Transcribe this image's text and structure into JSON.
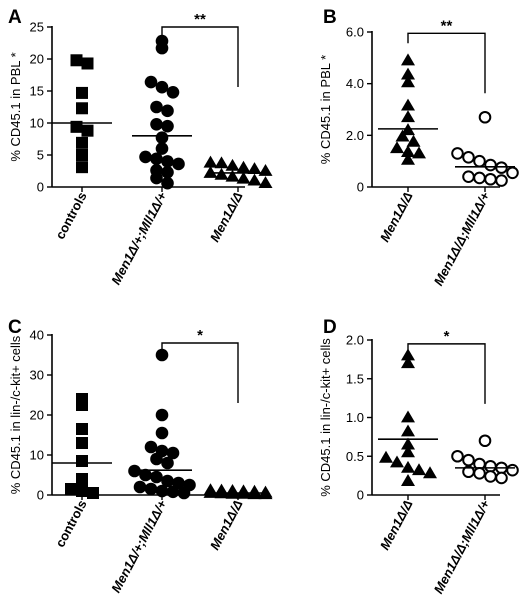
{
  "chart_data": [
    {
      "panel": "A",
      "type": "scatter",
      "ylabel": "% CD45.1 in PBL *",
      "ylim": [
        0,
        25
      ],
      "yticks": [
        0,
        5,
        10,
        15,
        20,
        25
      ],
      "categories": [
        "controls",
        "Men1Δ/+;Mll1Δ/+",
        "Men1Δ/Δ"
      ],
      "italic_categories": [
        false,
        true,
        true
      ],
      "series": [
        {
          "category": "controls",
          "marker": "square-filled",
          "mean": 10.0,
          "values": [
            19.8,
            19.3,
            14.7,
            12.3,
            9.4,
            8.8,
            6.9,
            5.0,
            3.1
          ]
        },
        {
          "category": "Men1Δ/+;Mll1Δ/+",
          "marker": "circle-filled",
          "mean": 8.0,
          "values": [
            22.8,
            21.7,
            16.4,
            15.6,
            14.8,
            12.5,
            11.9,
            9.8,
            9.5,
            7.7,
            6.0,
            4.7,
            4.4,
            4.0,
            3.6,
            2.6,
            2.3,
            1.4,
            0.6
          ]
        },
        {
          "category": "Men1Δ/Δ",
          "marker": "triangle-filled",
          "mean": 2.2,
          "values": [
            3.8,
            3.7,
            3.3,
            3.0,
            2.8,
            2.5,
            2.2,
            1.9,
            1.6,
            1.3,
            1.0,
            0.6
          ]
        }
      ],
      "significance": {
        "label": "**",
        "from": 1,
        "to": 2,
        "y": 25
      }
    },
    {
      "panel": "B",
      "type": "scatter",
      "ylabel": "% CD45.1 in PBL *",
      "ylim": [
        0,
        6
      ],
      "yticks": [
        0,
        2,
        4,
        6
      ],
      "ytick_labels": [
        "0",
        "2.0",
        "4.0",
        "6.0"
      ],
      "categories": [
        "Men1Δ/Δ",
        "Men1Δ/Δ;Mll1Δ/+"
      ],
      "italic_categories": [
        true,
        true
      ],
      "series": [
        {
          "category": "Men1Δ/Δ",
          "marker": "triangle-filled",
          "mean": 2.25,
          "values": [
            4.9,
            4.35,
            4.05,
            3.15,
            2.7,
            2.2,
            1.95,
            1.75,
            1.5,
            1.35,
            1.3,
            1.05
          ]
        },
        {
          "category": "Men1Δ/Δ;Mll1Δ/+",
          "marker": "circle-open",
          "mean": 0.78,
          "values": [
            2.7,
            1.3,
            1.15,
            1.0,
            0.85,
            0.75,
            0.55,
            0.4,
            0.35,
            0.3,
            0.25
          ]
        }
      ],
      "significance": {
        "label": "**",
        "from": 0,
        "to": 1,
        "y": 5.95
      }
    },
    {
      "panel": "C",
      "type": "scatter",
      "ylabel": "% CD45.1 in lin-/c-kit+ cells",
      "ylim": [
        0,
        40
      ],
      "yticks": [
        0,
        10,
        20,
        30,
        40
      ],
      "categories": [
        "controls",
        "Men1Δ/+;Mll1Δ/+",
        "Men1Δ/Δ"
      ],
      "italic_categories": [
        false,
        true,
        true
      ],
      "series": [
        {
          "category": "controls",
          "marker": "square-filled",
          "mean": 8.0,
          "values": [
            24.0,
            22.5,
            16.5,
            13.0,
            8.5,
            4.0,
            1.5,
            1.0,
            0.5
          ]
        },
        {
          "category": "Men1Δ/+;Mll1Δ/+",
          "marker": "circle-filled",
          "mean": 6.2,
          "values": [
            35.0,
            20.0,
            15.5,
            12.0,
            11.0,
            10.5,
            9.0,
            8.0,
            6.0,
            5.0,
            4.5,
            3.5,
            3.0,
            2.5,
            2.0,
            1.5,
            1.0,
            0.8,
            0.5
          ]
        },
        {
          "category": "Men1Δ/Δ",
          "marker": "triangle-filled",
          "mean": 0.5,
          "values": [
            1.2,
            1.1,
            1.0,
            0.9,
            0.8,
            0.6,
            0.5,
            0.4,
            0.3,
            0.3,
            0.2,
            0.2
          ]
        }
      ],
      "significance": {
        "label": "*",
        "from": 1,
        "to": 2,
        "y": 38
      }
    },
    {
      "panel": "D",
      "type": "scatter",
      "ylabel": "% CD45.1 in lin-/c-kit+ cells",
      "ylim": [
        0,
        2
      ],
      "yticks": [
        0,
        0.5,
        1.0,
        1.5,
        2.0
      ],
      "ytick_labels": [
        "0",
        "0.5",
        "1.0",
        "1.5",
        "2.0"
      ],
      "categories": [
        "Men1Δ/Δ",
        "Men1Δ/Δ;Mll1Δ/+"
      ],
      "italic_categories": [
        true,
        true
      ],
      "series": [
        {
          "category": "Men1Δ/Δ",
          "marker": "triangle-filled",
          "mean": 0.72,
          "values": [
            1.8,
            1.7,
            1.0,
            0.82,
            0.65,
            0.55,
            0.48,
            0.42,
            0.35,
            0.32,
            0.28,
            0.18
          ]
        },
        {
          "category": "Men1Δ/Δ;Mll1Δ/+",
          "marker": "circle-open",
          "mean": 0.35,
          "values": [
            0.7,
            0.5,
            0.45,
            0.4,
            0.37,
            0.35,
            0.32,
            0.3,
            0.28,
            0.24,
            0.22
          ]
        }
      ],
      "significance": {
        "label": "*",
        "from": 0,
        "to": 1,
        "y": 1.95
      }
    }
  ]
}
